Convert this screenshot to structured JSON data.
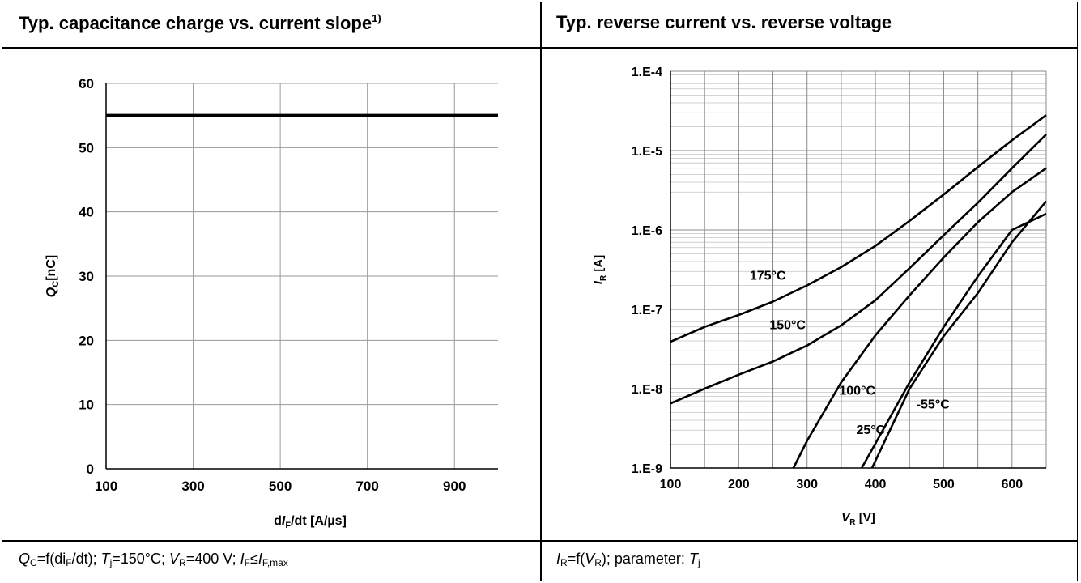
{
  "panels": {
    "left": {
      "title": "Typ. capacitance charge vs. current slope",
      "title_sup": "1)",
      "caption": {
        "p1": "Q",
        "p2": "C",
        "p3": "=f(di",
        "p4": "F",
        "p5": "/dt); ",
        "p6": "T",
        "p7": "j",
        "p8": "=150°C; ",
        "p9": "V",
        "p10": "R",
        "p11": "=400 V; ",
        "p12": "I",
        "p13": "F",
        "p14": "≤",
        "p15": "I",
        "p16": "F,max"
      }
    },
    "right": {
      "title": "Typ. reverse current vs. reverse voltage",
      "caption": {
        "p1": "I",
        "p2": "R",
        "p3": "=f(",
        "p4": "V",
        "p5": "R",
        "p6": "); parameter: ",
        "p7": "T",
        "p8": "j"
      }
    }
  },
  "chart_data": [
    {
      "type": "line",
      "ylabel": {
        "main": "Q",
        "sub": "C",
        "rest": "[nC]"
      },
      "xlabel": {
        "pre": "d",
        "italic": "I",
        "sub": "F",
        "rest": "/dt [A/µs]"
      },
      "xlim": [
        100,
        1000
      ],
      "ylim": [
        0,
        60
      ],
      "xticks": [
        100,
        300,
        500,
        700,
        900
      ],
      "yticks": [
        0,
        10,
        20,
        30,
        40,
        50,
        60
      ],
      "grid": true,
      "series": [
        {
          "x": [
            100,
            1000
          ],
          "y": [
            55,
            55
          ]
        }
      ]
    },
    {
      "type": "line",
      "yscale": "log",
      "ylabel": {
        "main": "I",
        "sub": "R",
        "rest": " [A]"
      },
      "xlabel": {
        "main": "V",
        "sub": "R",
        "rest": " [V]"
      },
      "xlim": [
        100,
        650
      ],
      "ylim": [
        1e-09,
        0.0001
      ],
      "xticks": [
        100,
        200,
        300,
        400,
        500,
        600
      ],
      "ytick_labels": [
        "1.E-9",
        "1.E-8",
        "1.E-7",
        "1.E-6",
        "1.E-5",
        "1.E-4"
      ],
      "grid": true,
      "series": [
        {
          "name": "175°C",
          "x": [
            100,
            150,
            200,
            250,
            300,
            350,
            400,
            450,
            500,
            550,
            600,
            650
          ],
          "y": [
            3.9e-08,
            6e-08,
            8.5e-08,
            1.25e-07,
            2e-07,
            3.4e-07,
            6.3e-07,
            1.3e-06,
            2.8e-06,
            6.2e-06,
            1.35e-05,
            2.8e-05
          ]
        },
        {
          "name": "150°C",
          "x": [
            100,
            150,
            200,
            250,
            300,
            350,
            400,
            450,
            500,
            550,
            600,
            650
          ],
          "y": [
            6.5e-09,
            1e-08,
            1.5e-08,
            2.2e-08,
            3.5e-08,
            6.3e-08,
            1.3e-07,
            3.3e-07,
            8.6e-07,
            2.2e-06,
            6e-06,
            1.6e-05
          ]
        },
        {
          "name": "100°C",
          "x": [
            280,
            300,
            350,
            400,
            450,
            500,
            550,
            600,
            650
          ],
          "y": [
            1e-09,
            2.2e-09,
            1.2e-08,
            4.7e-08,
            1.5e-07,
            4.5e-07,
            1.25e-06,
            3e-06,
            6e-06
          ]
        },
        {
          "name": "25°C",
          "x": [
            395,
            450,
            500,
            550,
            600,
            650
          ],
          "y": [
            1e-09,
            1e-08,
            4.6e-08,
            1.6e-07,
            7e-07,
            2.3e-06
          ]
        },
        {
          "name": "-55°C",
          "x": [
            380,
            450,
            500,
            550,
            600,
            650
          ],
          "y": [
            1e-09,
            1.2e-08,
            6e-08,
            2.6e-07,
            1e-06,
            1.6e-06
          ]
        }
      ],
      "annotations": [
        {
          "text": "175°C",
          "x": 216,
          "y": 2.7e-07
        },
        {
          "text": "150°C",
          "x": 245,
          "y": 6.5e-08
        },
        {
          "text": "100°C",
          "x": 347,
          "y": 9.6e-09
        },
        {
          "text": "25°C",
          "x": 372,
          "y": 3.1e-09
        },
        {
          "text": "-55°C",
          "x": 460,
          "y": 6.5e-09
        }
      ]
    }
  ]
}
